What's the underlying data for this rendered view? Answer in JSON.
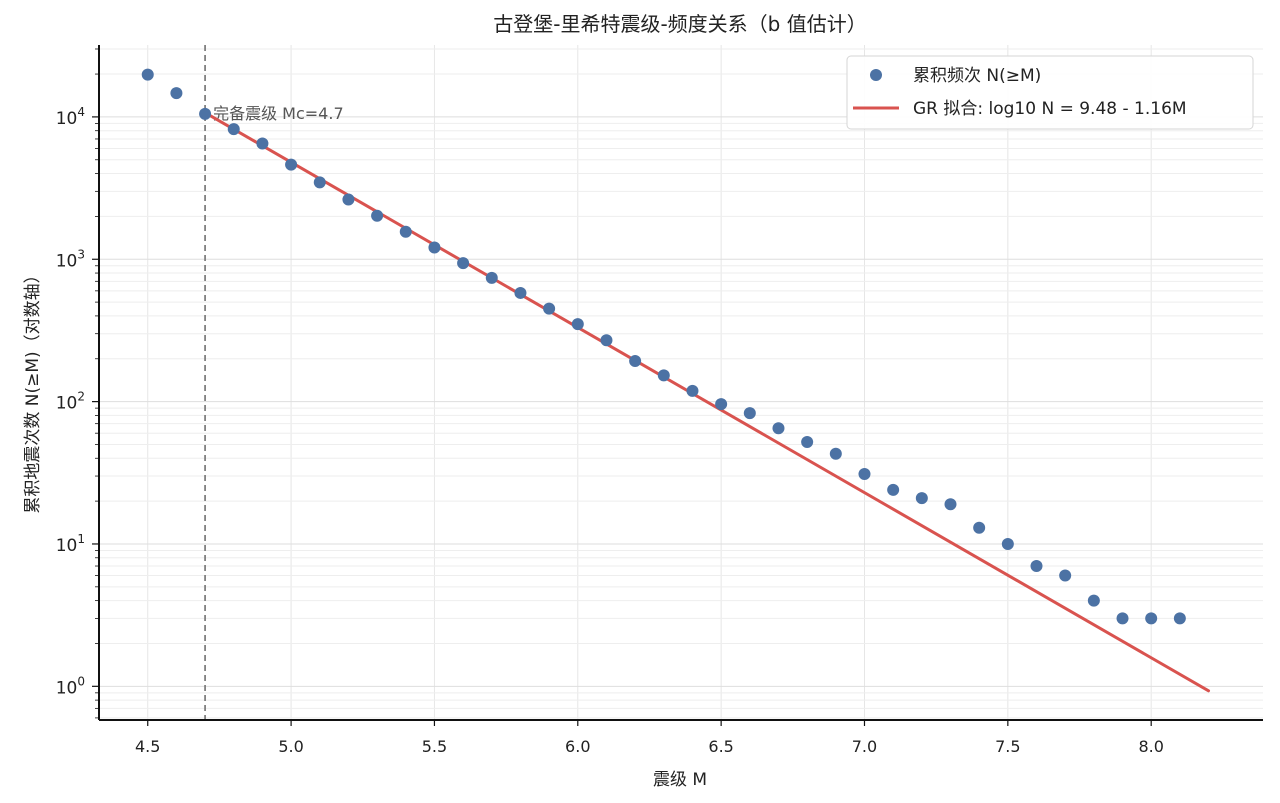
{
  "chart_data": {
    "type": "scatter",
    "title": "古登堡-里希特震级-频度关系（b 值估计）",
    "xlabel": "震级 M",
    "ylabel": "累积地震次数 N(≥M)（对数轴）",
    "x_scale": "linear",
    "y_scale": "log",
    "xlim": [
      4.33,
      8.39
    ],
    "ylim": [
      0.58,
      32000
    ],
    "x_ticks": [
      "4.5",
      "5.0",
      "5.5",
      "6.0",
      "6.5",
      "7.0",
      "7.5",
      "8.0"
    ],
    "y_ticks": [
      {
        "value": 1,
        "base": "10",
        "exp": "0"
      },
      {
        "value": 10,
        "base": "10",
        "exp": "1"
      },
      {
        "value": 100,
        "base": "10",
        "exp": "2"
      },
      {
        "value": 1000,
        "base": "10",
        "exp": "3"
      },
      {
        "value": 10000,
        "base": "10",
        "exp": "4"
      }
    ],
    "grid": true,
    "legend_position": "top-right",
    "series": [
      {
        "name": "累积频次 N(≥M)",
        "kind": "scatter",
        "color": "#4c72a4",
        "x": [
          4.5,
          4.6,
          4.7,
          4.8,
          4.9,
          5.0,
          5.1,
          5.2,
          5.3,
          5.4,
          5.5,
          5.6,
          5.7,
          5.8,
          5.9,
          6.0,
          6.1,
          6.2,
          6.3,
          6.4,
          6.5,
          6.6,
          6.7,
          6.8,
          6.9,
          7.0,
          7.1,
          7.2,
          7.3,
          7.4,
          7.5,
          7.6,
          7.7,
          7.8,
          7.9,
          8.0,
          8.1
        ],
        "y": [
          19800,
          14700,
          10500,
          8200,
          6500,
          4620,
          3470,
          2630,
          2020,
          1560,
          1210,
          940,
          740,
          580,
          450,
          350,
          270,
          193,
          153,
          119,
          96,
          83,
          65,
          52,
          43,
          31,
          24,
          21,
          19,
          13,
          10,
          7,
          6,
          4,
          3,
          3,
          3
        ]
      },
      {
        "name": "GR 拟合: log10 N = 9.48 - 1.16M",
        "kind": "line",
        "color": "#d9534f",
        "x": [
          4.7,
          8.2
        ],
        "y": [
          10700,
          0.93
        ]
      }
    ],
    "annotations": [
      {
        "type": "vline",
        "x": 4.7,
        "color": "#808080",
        "label": "完备震级 Mc=4.7"
      }
    ]
  }
}
